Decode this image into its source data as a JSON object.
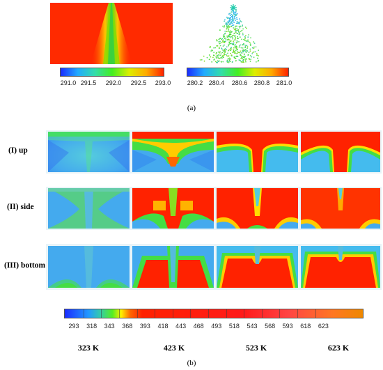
{
  "caption_a": "(a)",
  "caption_b": "(b)",
  "colorbar_a1": {
    "ticks": [
      "291.0",
      "291.5",
      "292.0",
      "292.5",
      "293.0"
    ]
  },
  "colorbar_a2": {
    "ticks": [
      "280.2",
      "280.4",
      "280.6",
      "280.8",
      "281.0"
    ]
  },
  "colorbar_b": {
    "ticks": [
      "293",
      "318",
      "343",
      "368",
      "393",
      "418",
      "443",
      "468",
      "493",
      "518",
      "543",
      "568",
      "593",
      "618",
      "623"
    ]
  },
  "rows": [
    {
      "label": "(I)   up"
    },
    {
      "label": "(II)  side"
    },
    {
      "label": "(III) bottom"
    }
  ],
  "temperatures": [
    "323 K",
    "423 K",
    "523 K",
    "623 K"
  ],
  "colors": {
    "blue": "#1a4cff",
    "cyan": "#33bbee",
    "green": "#33dd33",
    "yellow": "#ffee00",
    "red": "#ff2200"
  }
}
